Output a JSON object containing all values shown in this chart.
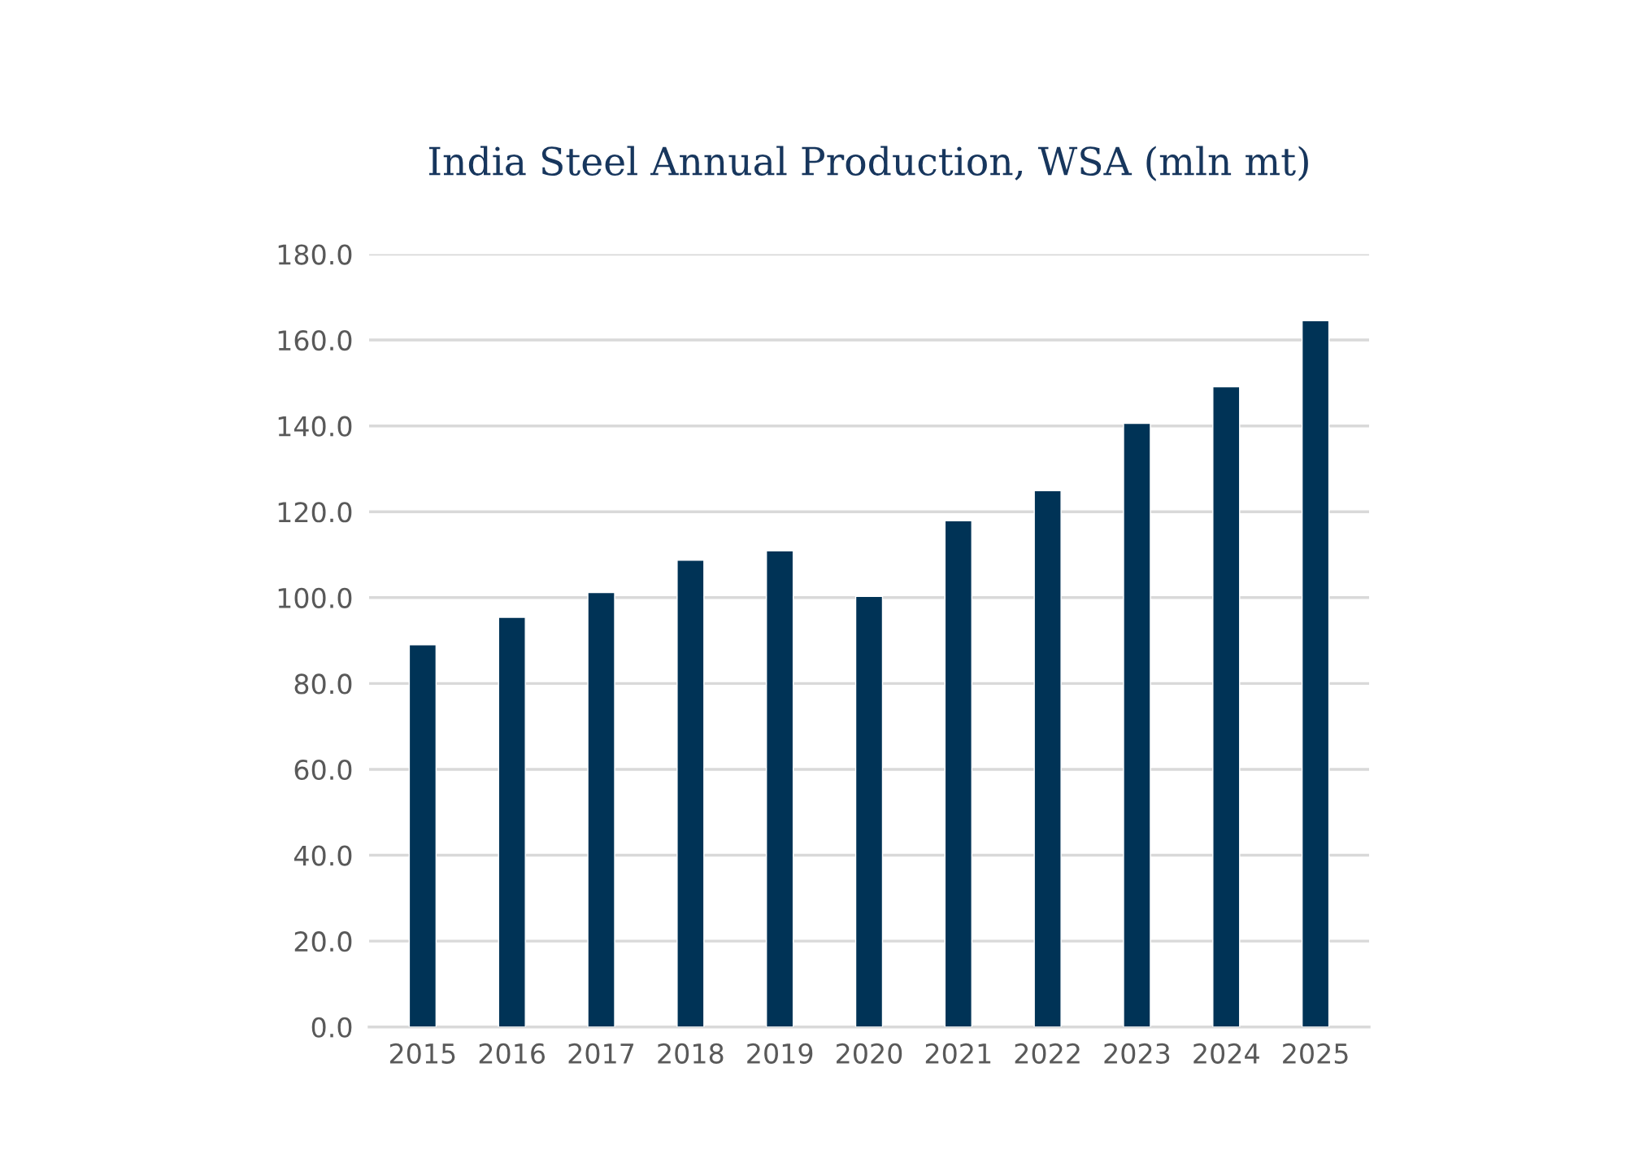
{
  "chart_data": {
    "type": "bar",
    "title": "India Steel Annual Production, WSA (mln mt)",
    "categories": [
      "2015",
      "2016",
      "2017",
      "2018",
      "2019",
      "2020",
      "2021",
      "2022",
      "2023",
      "2024",
      "2025"
    ],
    "values": [
      89.0,
      95.4,
      101.2,
      108.7,
      110.9,
      100.3,
      117.9,
      124.9,
      140.6,
      149.1,
      164.5
    ],
    "color": "#003356",
    "ylim": [
      0,
      180
    ],
    "yticks": [
      {
        "value": 0,
        "label": "0.0"
      },
      {
        "value": 20,
        "label": "20.0"
      },
      {
        "value": 40,
        "label": "40.0"
      },
      {
        "value": 60,
        "label": "60.0"
      },
      {
        "value": 80,
        "label": "80.0"
      },
      {
        "value": 100,
        "label": "100.0"
      },
      {
        "value": 120,
        "label": "120.0"
      },
      {
        "value": 140,
        "label": "140.0"
      },
      {
        "value": 160,
        "label": "160.0"
      },
      {
        "value": 180,
        "label": "180.0"
      }
    ],
    "grid": "y"
  }
}
